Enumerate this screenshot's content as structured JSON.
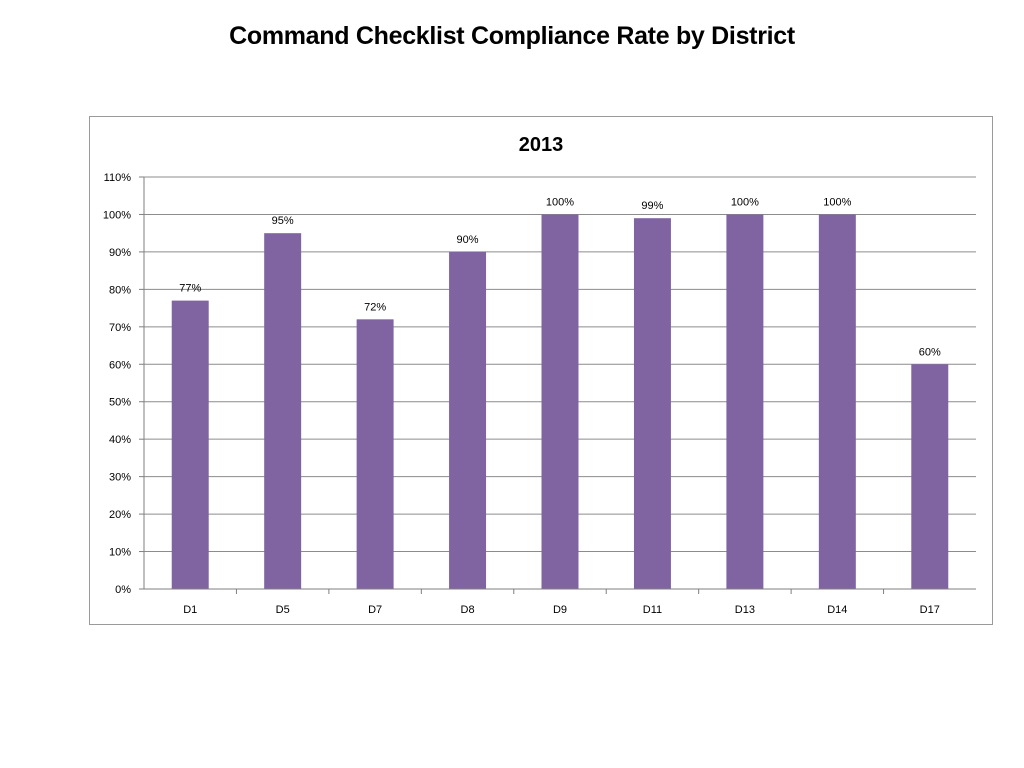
{
  "slide": {
    "title": "Command Checklist Compliance Rate by District"
  },
  "colors": {
    "bar": "#8064A2",
    "grid": "#8c8c8c",
    "axis": "#7f7f7f"
  },
  "chart_data": {
    "type": "bar",
    "title": "2013",
    "xlabel": "",
    "ylabel": "",
    "categories": [
      "D1",
      "D5",
      "D7",
      "D8",
      "D9",
      "D11",
      "D13",
      "D14",
      "D17"
    ],
    "values": [
      77,
      95,
      72,
      90,
      100,
      99,
      100,
      100,
      60
    ],
    "data_labels": [
      "77%",
      "95%",
      "72%",
      "90%",
      "100%",
      "99%",
      "100%",
      "100%",
      "60%"
    ],
    "ylim": [
      0,
      110
    ],
    "yticks": [
      0,
      10,
      20,
      30,
      40,
      50,
      60,
      70,
      80,
      90,
      100,
      110
    ],
    "ytick_labels": [
      "0%",
      "10%",
      "20%",
      "30%",
      "40%",
      "50%",
      "60%",
      "70%",
      "80%",
      "90%",
      "100%",
      "110%"
    ],
    "grid": true,
    "legend": "none"
  }
}
